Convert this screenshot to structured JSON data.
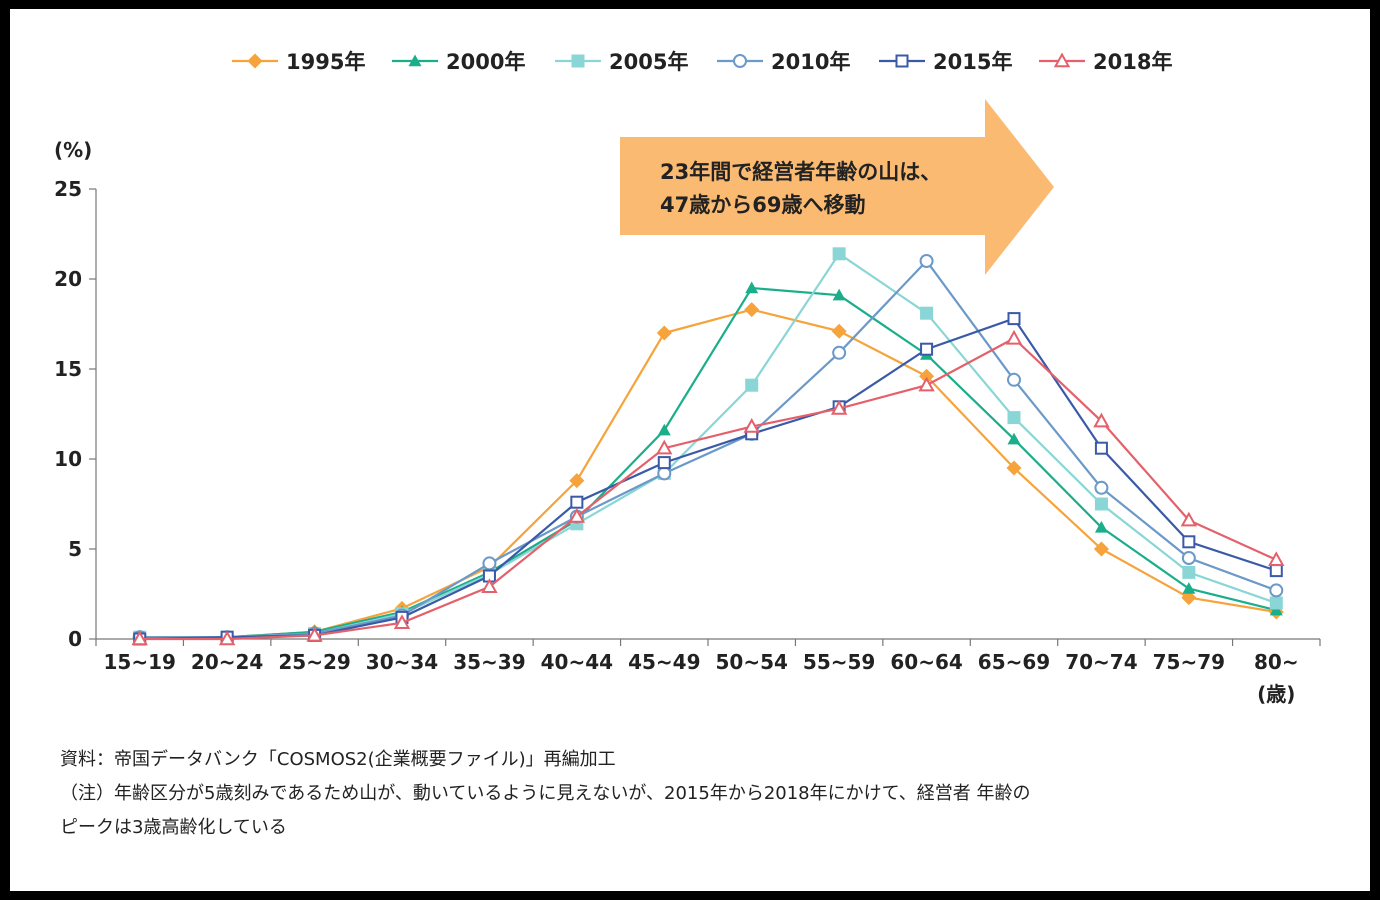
{
  "chart_data": {
    "type": "line",
    "ylabel": "(%)",
    "xunit": "(歳)",
    "ylim": [
      0,
      25
    ],
    "yticks": [
      0,
      5,
      10,
      15,
      20,
      25
    ],
    "categories": [
      "15~19",
      "20~24",
      "25~29",
      "30~34",
      "35~39",
      "40~44",
      "45~49",
      "50~54",
      "55~59",
      "60~64",
      "65~69",
      "70~74",
      "75~79",
      "80~"
    ],
    "legend_position": "top",
    "series": [
      {
        "name": "1995年",
        "color": "#F5A33A",
        "marker": "diamond",
        "values": [
          0.1,
          0.1,
          0.4,
          1.7,
          4.0,
          8.8,
          17.0,
          18.3,
          17.1,
          14.6,
          9.5,
          5.0,
          2.3,
          1.5
        ]
      },
      {
        "name": "2000年",
        "color": "#1AAE8A",
        "marker": "triangle-filled",
        "values": [
          0.1,
          0.1,
          0.4,
          1.5,
          3.7,
          6.6,
          11.6,
          19.5,
          19.1,
          15.8,
          11.1,
          6.2,
          2.8,
          1.6
        ]
      },
      {
        "name": "2005年",
        "color": "#8AD6D6",
        "marker": "square-filled",
        "values": [
          0.1,
          0.1,
          0.3,
          1.4,
          3.6,
          6.4,
          9.2,
          14.1,
          21.4,
          18.1,
          12.3,
          7.5,
          3.7,
          2.0
        ]
      },
      {
        "name": "2010年",
        "color": "#6B99C8",
        "marker": "circle-open",
        "values": [
          0.1,
          0.1,
          0.3,
          1.3,
          4.2,
          6.8,
          9.2,
          11.4,
          15.9,
          21.0,
          14.4,
          8.4,
          4.5,
          2.7
        ]
      },
      {
        "name": "2015年",
        "color": "#3A5AA8",
        "marker": "square-open",
        "values": [
          0.0,
          0.1,
          0.2,
          1.2,
          3.5,
          7.6,
          9.8,
          11.4,
          12.9,
          16.1,
          17.8,
          10.6,
          5.4,
          3.8
        ]
      },
      {
        "name": "2018年",
        "color": "#E4606A",
        "marker": "triangle-open",
        "values": [
          0.0,
          0.0,
          0.2,
          0.9,
          2.9,
          6.8,
          10.6,
          11.8,
          12.8,
          14.1,
          16.7,
          12.1,
          6.6,
          4.4
        ]
      }
    ],
    "annotation": {
      "lines": [
        "23年間で経営者年齢の山は、",
        "47歳から69歳へ移動"
      ],
      "color": "#FBBA72"
    }
  },
  "notes": {
    "source": "資料：帝国データバンク「COSMOS2(企業概要ファイル)」再編加工",
    "note_line1": "（注）年齢区分が5歳刻みであるため山が、動いているように見えないが、2015年から2018年にかけて、経営者 年齢の",
    "note_line2": "ピークは3歳高齢化している"
  }
}
